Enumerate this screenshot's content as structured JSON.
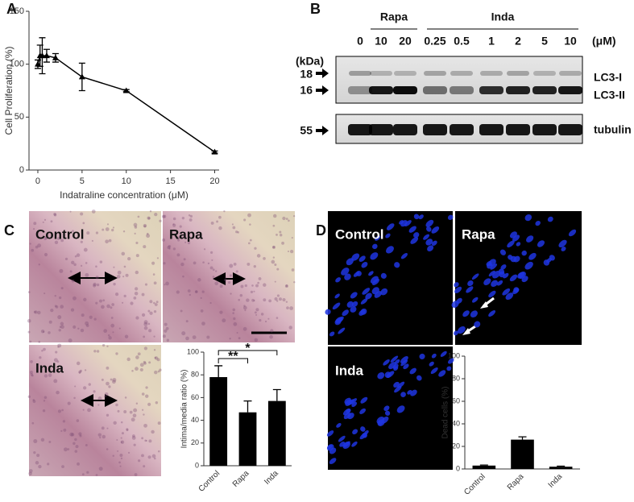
{
  "panels": [
    "A",
    "B",
    "C",
    "D"
  ],
  "blot": {
    "groups": [
      "Rapa",
      "Inda"
    ],
    "lanes": [
      "0",
      "10",
      "20",
      "0.25",
      "0.5",
      "1",
      "2",
      "5",
      "10"
    ],
    "unit": "(μM)",
    "kda": "(kDa)",
    "markers": [
      "18",
      "16",
      "55"
    ],
    "bands": [
      "LC3-I",
      "LC3-II",
      "tubulin"
    ]
  },
  "images": {
    "he": [
      "Control",
      "Rapa",
      "Inda"
    ],
    "fluor": [
      "Control",
      "Rapa",
      "Inda"
    ]
  },
  "chart_data": [
    {
      "type": "line",
      "x_label": "Indatraline concentration (μM)",
      "y_label": "Cell Proliferation  (%)",
      "x": [
        0,
        0.25,
        0.5,
        1,
        2,
        5,
        10,
        20
      ],
      "series": [
        {
          "color": "#000000",
          "values": [
            100,
            108,
            108,
            108,
            106,
            88,
            75,
            17
          ],
          "errors": [
            4,
            10,
            17,
            6,
            4,
            13,
            1,
            1
          ]
        }
      ],
      "xlim": [
        -1,
        20.5
      ],
      "xticks": [
        0,
        5,
        10,
        15,
        20
      ],
      "ylim": [
        0,
        150
      ],
      "yticks": [
        0,
        50,
        100,
        150
      ]
    },
    {
      "type": "bar",
      "y_label": "Intima/media ratio (%)",
      "categories": [
        "Control",
        "Rapa",
        "Inda"
      ],
      "values": [
        78,
        47,
        57
      ],
      "errors": [
        10,
        10,
        10
      ],
      "color": "#000000",
      "ylim": [
        0,
        100
      ],
      "yticks": [
        0,
        20,
        40,
        60,
        80,
        100
      ],
      "annotations": [
        "**",
        "*"
      ]
    },
    {
      "type": "bar",
      "y_label": "Dead cells  (%)",
      "categories": [
        "Control",
        "Rapa",
        "Inda"
      ],
      "values": [
        3,
        26,
        2
      ],
      "errors": [
        0.5,
        2.5,
        0.5
      ],
      "color": "#000000",
      "ylim": [
        0,
        100
      ],
      "yticks": [
        0,
        20,
        40,
        60,
        80,
        100
      ]
    }
  ]
}
